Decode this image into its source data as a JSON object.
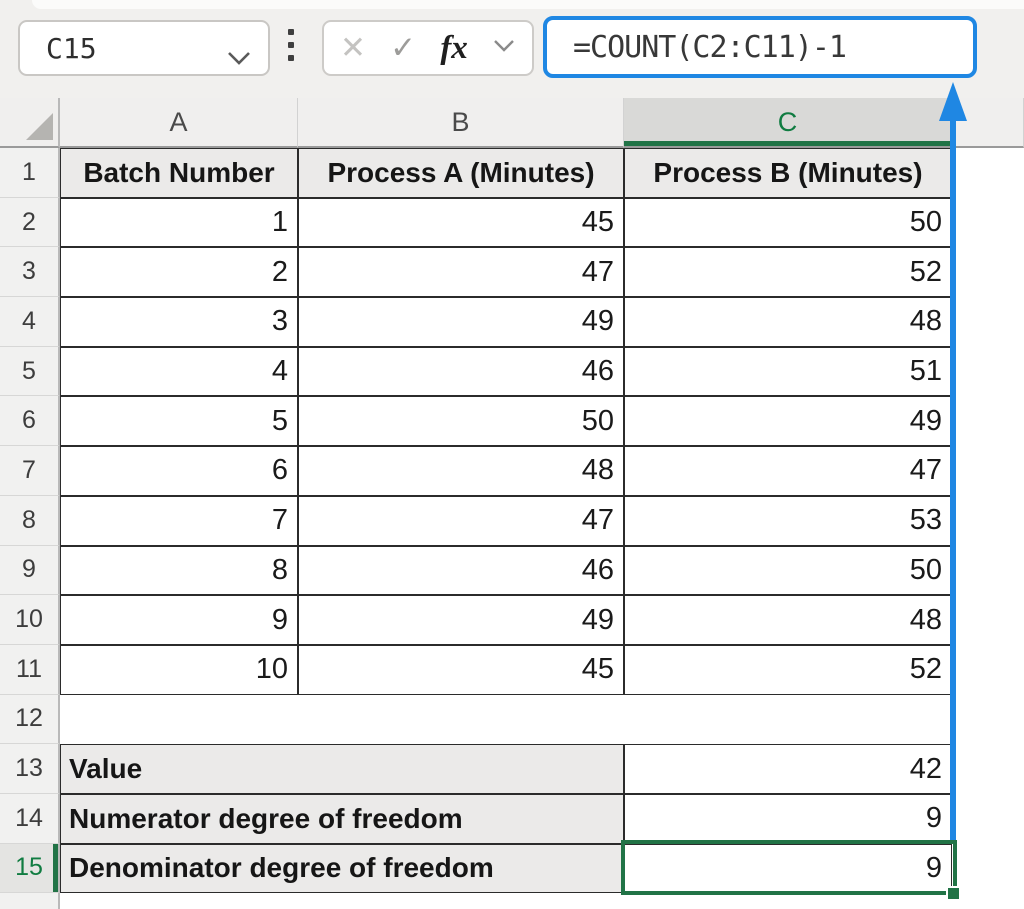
{
  "top_bar": {
    "name_box": {
      "value": "C15"
    },
    "formula_bar": {
      "formula": "=COUNT(C2:C11)-1"
    },
    "buttons": {
      "cancel": "✕",
      "enter": "✓",
      "insert_function": "fx"
    }
  },
  "sheet": {
    "column_headers": [
      "A",
      "B",
      "C"
    ],
    "selected_column": "C",
    "selected_row": 15,
    "selected_cell": "C15",
    "row_numbers": [
      "1",
      "2",
      "3",
      "4",
      "5",
      "6",
      "7",
      "8",
      "9",
      "10",
      "11",
      "12",
      "13",
      "14",
      "15"
    ],
    "table": {
      "headers": [
        "Batch Number",
        "Process A (Minutes)",
        "Process B (Minutes)"
      ],
      "rows": [
        [
          "1",
          "45",
          "50"
        ],
        [
          "2",
          "47",
          "52"
        ],
        [
          "3",
          "49",
          "48"
        ],
        [
          "4",
          "46",
          "51"
        ],
        [
          "5",
          "50",
          "49"
        ],
        [
          "6",
          "48",
          "47"
        ],
        [
          "7",
          "47",
          "53"
        ],
        [
          "8",
          "46",
          "50"
        ],
        [
          "9",
          "49",
          "48"
        ],
        [
          "10",
          "45",
          "52"
        ]
      ]
    },
    "summary": [
      {
        "label": "Value",
        "value": "42"
      },
      {
        "label": "Numerator degree of freedom",
        "value": "9"
      },
      {
        "label": "Denominator degree of freedom",
        "value": "9"
      }
    ]
  },
  "annotation": {
    "arrow_from": "C15",
    "arrow_to": "formula_bar"
  },
  "colors": {
    "accent_blue": "#1f87e3",
    "selection_green": "#217346",
    "header_text_green": "#107c41",
    "grid_border_black": "#2b2b2b",
    "header_fill": "#ebeae9"
  }
}
